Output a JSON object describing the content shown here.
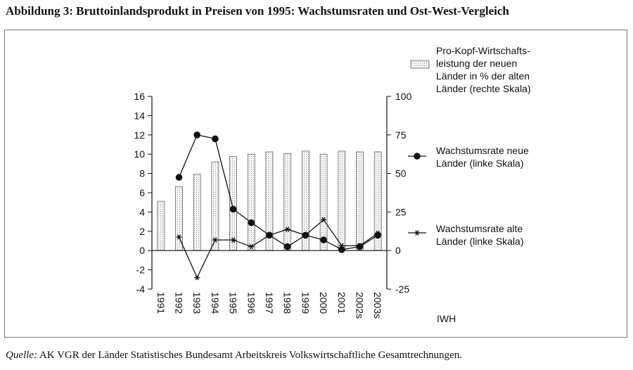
{
  "figure": {
    "title": "Abbildung 3:  Bruttoinlandsprodukt in Preisen von 1995: Wachstumsraten und Ost-West-Vergleich",
    "source_label": "Quelle:",
    "source_text": "AK VGR der Länder Statistisches Bundesamt Arbeitskreis Volkswirtschaftliche Gesamtrechnungen.",
    "credit": "IWH"
  },
  "chart_data": {
    "type": "bar",
    "categories": [
      "1991",
      "1992",
      "1993",
      "1994",
      "1995",
      "1996",
      "1997",
      "1998",
      "1999",
      "2000",
      "2001",
      "2002s",
      "2003s"
    ],
    "left_axis": {
      "ylim": [
        -4,
        16
      ],
      "ticks": [
        -4,
        -2,
        0,
        2,
        4,
        6,
        8,
        10,
        12,
        14,
        16
      ]
    },
    "right_axis": {
      "ylim": [
        -25,
        100
      ],
      "ticks": [
        -25,
        0,
        25,
        50,
        75,
        100
      ]
    },
    "grid": false,
    "legend_position": "right",
    "series": [
      {
        "name": "Pro-Kopf-Wirtschafts-\nleistung der neuen\nLänder in % der alten\nLänder (rechte Skala)",
        "kind": "bar",
        "axis": "right",
        "values": [
          32,
          41.5,
          49.5,
          57.5,
          61,
          62.5,
          64,
          63,
          64.5,
          62.5,
          64.5,
          64,
          64
        ]
      },
      {
        "name": "Wachstumsrate neue\nLänder (linke Skala)",
        "kind": "line",
        "marker": "circle",
        "axis": "left",
        "values": [
          null,
          7.6,
          12,
          11.6,
          4.3,
          2.9,
          1.6,
          0.4,
          1.6,
          1.1,
          0.1,
          0.4,
          1.6
        ]
      },
      {
        "name": "Wachstumsrate alte\nLänder (linke Skala)",
        "kind": "line",
        "marker": "star",
        "axis": "left",
        "values": [
          null,
          1.4,
          -2.8,
          1.1,
          1.1,
          0.4,
          1.6,
          2.2,
          1.6,
          3.2,
          0.5,
          0.5,
          1.8
        ]
      }
    ]
  }
}
